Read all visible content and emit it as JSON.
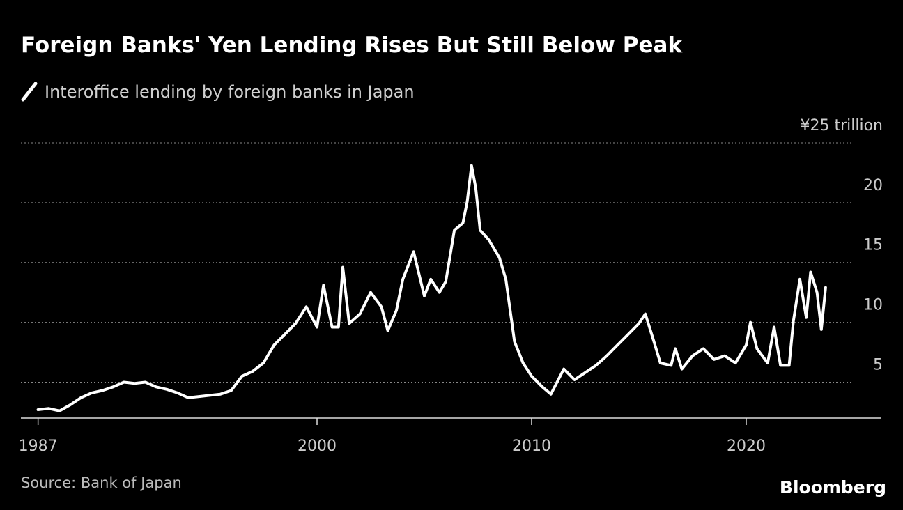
{
  "chart_data": {
    "type": "line",
    "title": "Foreign Banks' Yen Lending Rises But Still Below Peak",
    "source": "Source: Bank of Japan",
    "brand": "Bloomberg",
    "xlim": [
      1986.2,
      2026.3
    ],
    "xticks": [
      1987,
      2000,
      2010,
      2020
    ],
    "ylim": [
      2,
      25
    ],
    "yticks": [
      5,
      10,
      15,
      20,
      {
        "value": 25,
        "label": "¥25 trillion"
      }
    ],
    "grid": true,
    "series": [
      {
        "name": "Interoffice lending by foreign banks in Japan",
        "color": "#ffffff",
        "x": [
          1987.0,
          1987.5,
          1988.0,
          1988.5,
          1989.0,
          1989.5,
          1990.0,
          1990.5,
          1991.0,
          1991.5,
          1992.0,
          1992.5,
          1993.0,
          1993.5,
          1994.0,
          1994.5,
          1995.0,
          1995.5,
          1996.0,
          1996.5,
          1997.0,
          1997.5,
          1998.0,
          1998.5,
          1999.0,
          1999.5,
          2000.0,
          2000.3,
          2000.7,
          2001.0,
          2001.2,
          2001.5,
          2002.0,
          2002.5,
          2003.0,
          2003.3,
          2003.7,
          2004.0,
          2004.5,
          2005.0,
          2005.3,
          2005.7,
          2006.0,
          2006.4,
          2006.8,
          2007.0,
          2007.2,
          2007.4,
          2007.6,
          2008.0,
          2008.5,
          2008.8,
          2009.2,
          2009.6,
          2010.0,
          2010.5,
          2010.9,
          2011.5,
          2012.0,
          2012.5,
          2013.0,
          2013.5,
          2014.0,
          2014.5,
          2015.0,
          2015.3,
          2015.7,
          2016.0,
          2016.5,
          2016.7,
          2017.0,
          2017.5,
          2018.0,
          2018.5,
          2019.0,
          2019.5,
          2020.0,
          2020.2,
          2020.5,
          2021.0,
          2021.3,
          2021.6,
          2022.0,
          2022.2,
          2022.5,
          2022.8,
          2023.0,
          2023.3,
          2023.5,
          2023.7
        ],
        "values": [
          2.7,
          2.8,
          2.6,
          3.1,
          3.7,
          4.1,
          4.3,
          4.6,
          5.0,
          4.9,
          5.0,
          4.6,
          4.4,
          4.1,
          3.7,
          3.8,
          3.9,
          4.0,
          4.3,
          5.5,
          5.9,
          6.6,
          8.1,
          9.0,
          9.9,
          11.3,
          9.6,
          13.1,
          9.6,
          9.6,
          14.6,
          9.9,
          10.7,
          12.5,
          11.3,
          9.3,
          11.0,
          13.6,
          15.9,
          12.2,
          13.6,
          12.5,
          13.4,
          17.7,
          18.3,
          20.1,
          23.1,
          21.2,
          17.7,
          16.9,
          15.4,
          13.6,
          8.4,
          6.6,
          5.5,
          4.6,
          4.0,
          6.1,
          5.2,
          5.8,
          6.4,
          7.2,
          8.1,
          9.0,
          9.9,
          10.7,
          8.4,
          6.6,
          6.4,
          7.8,
          6.1,
          7.2,
          7.8,
          6.9,
          7.2,
          6.6,
          8.1,
          10.0,
          7.8,
          6.6,
          9.6,
          6.4,
          6.4,
          10.1,
          13.6,
          10.4,
          14.2,
          12.5,
          9.4,
          12.9
        ]
      }
    ]
  }
}
